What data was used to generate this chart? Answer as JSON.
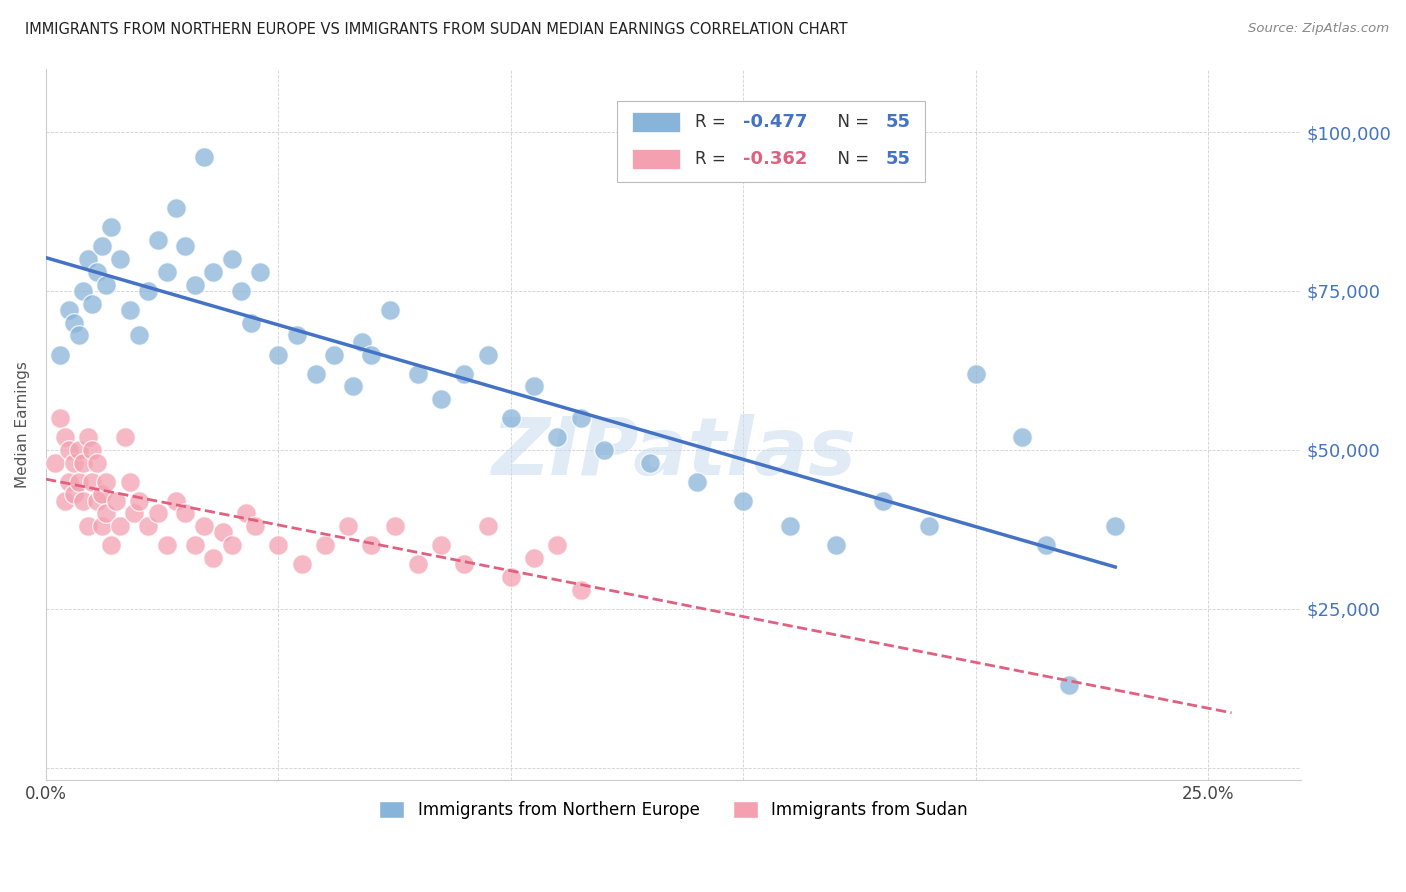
{
  "title": "IMMIGRANTS FROM NORTHERN EUROPE VS IMMIGRANTS FROM SUDAN MEDIAN EARNINGS CORRELATION CHART",
  "source": "Source: ZipAtlas.com",
  "ylabel": "Median Earnings",
  "x_ticks": [
    0.0,
    0.05,
    0.1,
    0.15,
    0.2,
    0.25
  ],
  "x_tick_labels": [
    "0.0%",
    "",
    "",
    "",
    "",
    "25.0%"
  ],
  "y_ticks": [
    0,
    25000,
    50000,
    75000,
    100000
  ],
  "y_tick_labels": [
    "",
    "$25,000",
    "$50,000",
    "$75,000",
    "$100,000"
  ],
  "xlim": [
    0.0,
    0.27
  ],
  "ylim": [
    -2000,
    110000
  ],
  "blue_R": "-0.477",
  "blue_N": "55",
  "pink_R": "-0.362",
  "pink_N": "55",
  "legend1_label": "Immigrants from Northern Europe",
  "legend2_label": "Immigrants from Sudan",
  "blue_color": "#89B4D9",
  "pink_color": "#F4A0B0",
  "line_blue": "#4472C4",
  "line_pink": "#E06080",
  "watermark": "ZIPatlas",
  "watermark_color": "#C8DCF0",
  "blue_points_x": [
    0.003,
    0.005,
    0.006,
    0.007,
    0.008,
    0.009,
    0.01,
    0.011,
    0.012,
    0.013,
    0.014,
    0.016,
    0.018,
    0.02,
    0.022,
    0.024,
    0.026,
    0.028,
    0.03,
    0.032,
    0.034,
    0.036,
    0.04,
    0.042,
    0.044,
    0.046,
    0.05,
    0.054,
    0.058,
    0.062,
    0.066,
    0.068,
    0.07,
    0.074,
    0.08,
    0.085,
    0.09,
    0.095,
    0.1,
    0.105,
    0.11,
    0.115,
    0.12,
    0.13,
    0.14,
    0.15,
    0.16,
    0.17,
    0.18,
    0.19,
    0.2,
    0.21,
    0.215,
    0.22,
    0.23
  ],
  "blue_points_y": [
    65000,
    72000,
    70000,
    68000,
    75000,
    80000,
    73000,
    78000,
    82000,
    76000,
    85000,
    80000,
    72000,
    68000,
    75000,
    83000,
    78000,
    88000,
    82000,
    76000,
    96000,
    78000,
    80000,
    75000,
    70000,
    78000,
    65000,
    68000,
    62000,
    65000,
    60000,
    67000,
    65000,
    72000,
    62000,
    58000,
    62000,
    65000,
    55000,
    60000,
    52000,
    55000,
    50000,
    48000,
    45000,
    42000,
    38000,
    35000,
    42000,
    38000,
    62000,
    52000,
    35000,
    13000,
    38000
  ],
  "pink_points_x": [
    0.002,
    0.003,
    0.004,
    0.004,
    0.005,
    0.005,
    0.006,
    0.006,
    0.007,
    0.007,
    0.008,
    0.008,
    0.009,
    0.009,
    0.01,
    0.01,
    0.011,
    0.011,
    0.012,
    0.012,
    0.013,
    0.013,
    0.014,
    0.015,
    0.016,
    0.017,
    0.018,
    0.019,
    0.02,
    0.022,
    0.024,
    0.026,
    0.028,
    0.03,
    0.032,
    0.034,
    0.036,
    0.038,
    0.04,
    0.043,
    0.045,
    0.05,
    0.055,
    0.06,
    0.065,
    0.07,
    0.075,
    0.08,
    0.085,
    0.09,
    0.095,
    0.1,
    0.105,
    0.11,
    0.115
  ],
  "pink_points_y": [
    48000,
    55000,
    52000,
    42000,
    50000,
    45000,
    48000,
    43000,
    50000,
    45000,
    48000,
    42000,
    52000,
    38000,
    50000,
    45000,
    42000,
    48000,
    43000,
    38000,
    45000,
    40000,
    35000,
    42000,
    38000,
    52000,
    45000,
    40000,
    42000,
    38000,
    40000,
    35000,
    42000,
    40000,
    35000,
    38000,
    33000,
    37000,
    35000,
    40000,
    38000,
    35000,
    32000,
    35000,
    38000,
    35000,
    38000,
    32000,
    35000,
    32000,
    38000,
    30000,
    33000,
    35000,
    28000
  ]
}
